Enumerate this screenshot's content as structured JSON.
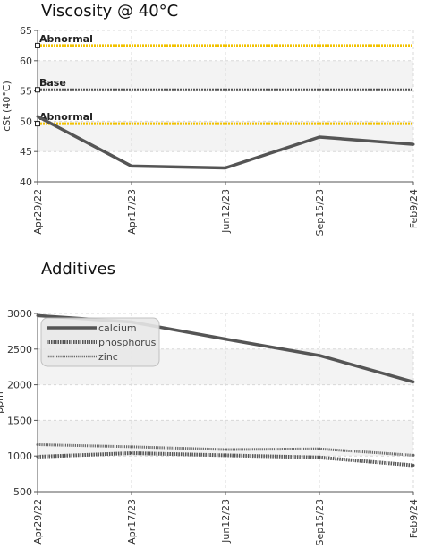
{
  "chart_data": [
    {
      "type": "line",
      "title": "Viscosity @ 40°C",
      "ylabel": "cSt (40°C)",
      "ylim": [
        40,
        65
      ],
      "yticks": [
        40,
        45,
        50,
        55,
        60,
        65
      ],
      "categories": [
        "Apr29/22",
        "Apr17/23",
        "Jun12/23",
        "Sep15/23",
        "Feb9/24"
      ],
      "series": [
        {
          "values": [
            50.8,
            42.6,
            42.3,
            47.4,
            46.2
          ],
          "color": "#555555"
        }
      ],
      "reference_lines": [
        {
          "label": "Abnormal",
          "value": 62.5,
          "color": "#f2c200"
        },
        {
          "label": "Base",
          "value": 55.2,
          "color": "#555555"
        },
        {
          "label": "Abnormal",
          "value": 49.6,
          "color": "#f2c200"
        }
      ],
      "grid": true
    },
    {
      "type": "line",
      "title": "Additives",
      "ylabel": "ppm",
      "ylim": [
        500,
        3000
      ],
      "yticks": [
        500,
        1000,
        1500,
        2000,
        2500,
        3000
      ],
      "categories": [
        "Apr29/22",
        "Apr17/23",
        "Jun12/23",
        "Sep15/23",
        "Feb9/24"
      ],
      "series": [
        {
          "name": "calcium",
          "values": [
            2970,
            2880,
            2640,
            2410,
            2040
          ],
          "color": "#555555",
          "style": "solid"
        },
        {
          "name": "phosphorus",
          "values": [
            990,
            1040,
            1010,
            980,
            870
          ],
          "color": "#555555",
          "style": "dotted"
        },
        {
          "name": "zinc",
          "values": [
            1160,
            1130,
            1090,
            1100,
            1010
          ],
          "color": "#666666",
          "style": "dotted-thin"
        }
      ],
      "legend": "top-left",
      "grid": true
    }
  ]
}
